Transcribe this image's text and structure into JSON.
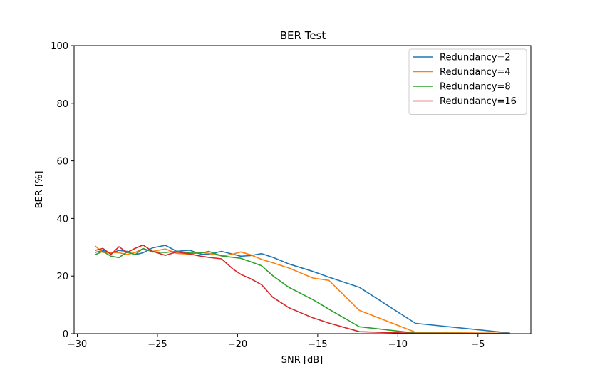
{
  "chart_data": {
    "type": "line",
    "title": "BER Test",
    "xlabel": "SNR [dB]",
    "ylabel": "BER [%]",
    "xlim": [
      -30.2,
      -1.7
    ],
    "ylim": [
      0,
      100
    ],
    "xticks": [
      -30,
      -25,
      -20,
      -15,
      -10,
      -5
    ],
    "xtick_labels": [
      "−30",
      "−25",
      "−20",
      "−15",
      "−10",
      "−5"
    ],
    "yticks": [
      0,
      20,
      40,
      60,
      80,
      100
    ],
    "ytick_labels": [
      "0",
      "20",
      "40",
      "60",
      "80",
      "100"
    ],
    "grid": false,
    "legend_position": "top-right",
    "series": [
      {
        "name": "Redundancy=2",
        "color": "#1f77b4",
        "x": [
          -28.9,
          -28.4,
          -27.9,
          -27.4,
          -26.9,
          -26.4,
          -25.9,
          -25.3,
          -24.5,
          -23.8,
          -23.0,
          -22.3,
          -21.8,
          -21.0,
          -20.3,
          -19.8,
          -19.2,
          -18.5,
          -17.8,
          -16.8,
          -15.3,
          -14.3,
          -12.4,
          -8.9,
          -3.0
        ],
        "y": [
          28.2,
          28.9,
          28.0,
          28.9,
          28.6,
          27.4,
          28.1,
          29.8,
          30.7,
          28.6,
          29.0,
          27.6,
          27.6,
          28.6,
          27.6,
          26.9,
          27.1,
          27.8,
          26.5,
          24.2,
          21.6,
          19.6,
          16.1,
          3.6,
          0.2
        ]
      },
      {
        "name": "Redundancy=4",
        "color": "#ff7f0e",
        "x": [
          -28.9,
          -28.4,
          -27.9,
          -27.4,
          -26.9,
          -26.4,
          -25.9,
          -25.3,
          -24.5,
          -23.8,
          -23.0,
          -22.3,
          -21.8,
          -21.0,
          -20.3,
          -19.8,
          -19.2,
          -18.5,
          -17.8,
          -16.8,
          -15.3,
          -14.3,
          -12.4,
          -8.9,
          -3.0
        ],
        "y": [
          30.5,
          28.2,
          28.2,
          28.1,
          27.5,
          28.2,
          29.5,
          28.6,
          29.4,
          27.9,
          27.6,
          28.3,
          27.9,
          27.0,
          27.6,
          28.4,
          27.4,
          25.8,
          24.6,
          22.8,
          19.3,
          18.5,
          8.1,
          0.5,
          0.1
        ]
      },
      {
        "name": "Redundancy=8",
        "color": "#2ca02c",
        "x": [
          -28.9,
          -28.4,
          -27.9,
          -27.4,
          -26.9,
          -26.4,
          -25.9,
          -25.3,
          -24.5,
          -23.8,
          -23.0,
          -22.3,
          -21.8,
          -21.0,
          -20.3,
          -19.8,
          -19.2,
          -18.5,
          -17.8,
          -16.8,
          -15.3,
          -14.3,
          -12.4,
          -8.9,
          -3.0
        ],
        "y": [
          27.4,
          28.6,
          26.9,
          26.4,
          28.4,
          27.4,
          29.6,
          28.4,
          28.2,
          28.6,
          28.0,
          28.0,
          28.6,
          27.0,
          26.5,
          26.2,
          25.0,
          23.6,
          20.1,
          16.1,
          11.8,
          8.5,
          2.4,
          0.2,
          0.0
        ]
      },
      {
        "name": "Redundancy=16",
        "color": "#d62728",
        "x": [
          -28.9,
          -28.4,
          -27.9,
          -27.4,
          -26.9,
          -26.4,
          -25.9,
          -25.3,
          -24.5,
          -23.8,
          -23.0,
          -22.3,
          -21.8,
          -21.0,
          -20.3,
          -19.8,
          -19.2,
          -18.5,
          -17.8,
          -16.8,
          -15.3,
          -14.3,
          -12.4,
          -8.9,
          -3.0
        ],
        "y": [
          28.9,
          29.6,
          27.5,
          30.2,
          28.2,
          29.6,
          30.8,
          28.6,
          27.2,
          28.4,
          27.7,
          26.9,
          26.5,
          26.0,
          22.5,
          20.6,
          19.1,
          17.0,
          12.6,
          9.0,
          5.5,
          3.7,
          0.7,
          0.1,
          0.0
        ]
      }
    ]
  }
}
